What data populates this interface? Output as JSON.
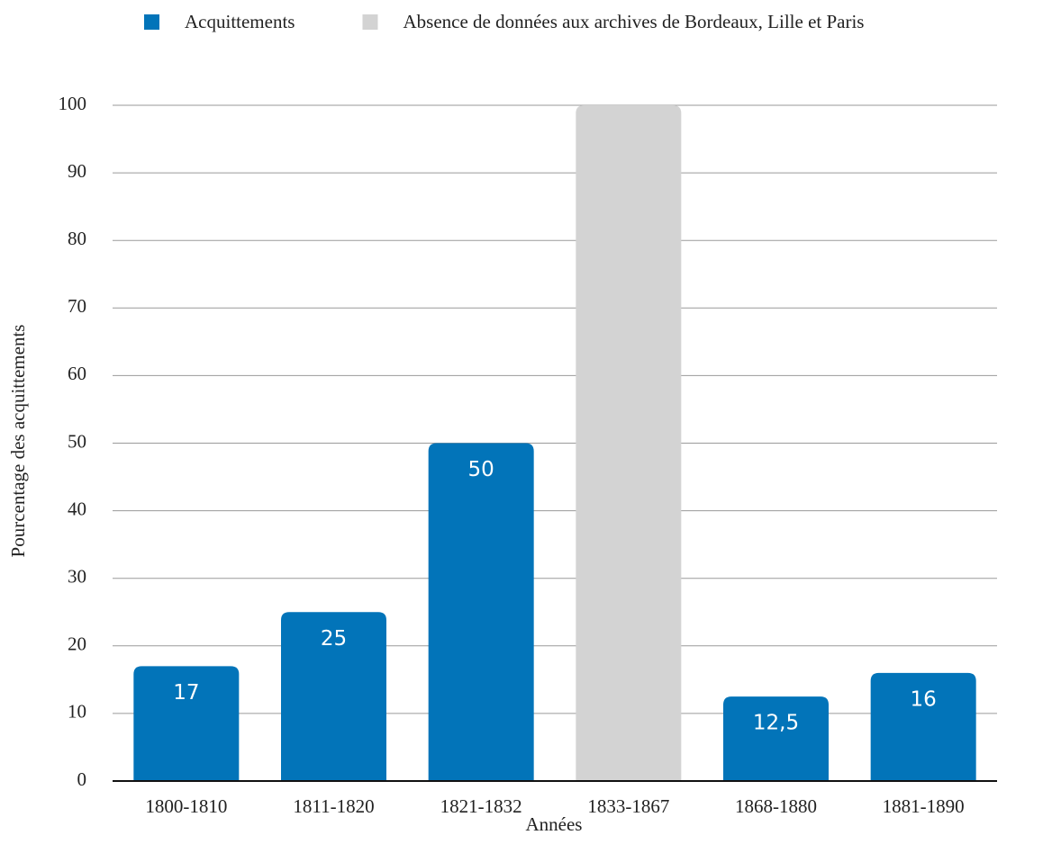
{
  "chart_data": {
    "type": "bar",
    "categories": [
      "1800-1810",
      "1811-1820",
      "1821-1832",
      "1833-1867",
      "1868-1880",
      "1881-1890"
    ],
    "series": [
      {
        "name": "Acquittements",
        "color": "#0274b9",
        "values": [
          17,
          25,
          50,
          null,
          12.5,
          16
        ],
        "value_labels": [
          "17",
          "25",
          "50",
          null,
          "12,5",
          "16"
        ]
      },
      {
        "name": "Absence de données aux archives de Bordeaux, Lille et Paris",
        "color": "#d3d3d3",
        "values": [
          null,
          null,
          null,
          100,
          null,
          null
        ]
      }
    ],
    "xlabel": "Années",
    "ylabel": "Pourcentage des acquittements",
    "ylim": [
      0,
      100
    ],
    "yticks": [
      0,
      10,
      20,
      30,
      40,
      50,
      60,
      70,
      80,
      90,
      100
    ],
    "grid": true,
    "legend": "top"
  }
}
